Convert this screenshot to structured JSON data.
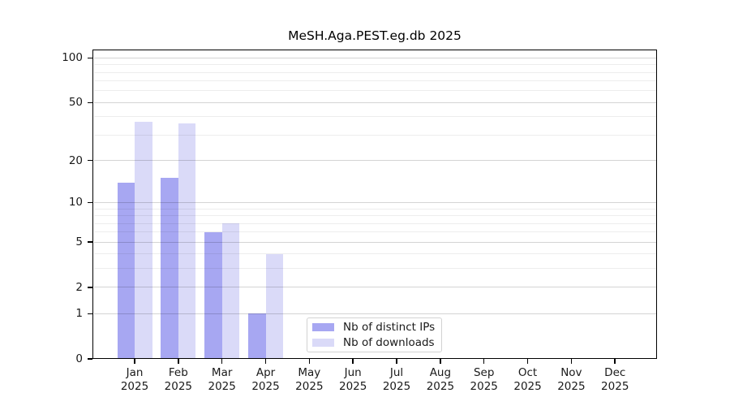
{
  "chart_data": {
    "type": "bar",
    "title": "MeSH.Aga.PEST.eg.db 2025",
    "categories": [
      "Jan",
      "Feb",
      "Mar",
      "Apr",
      "May",
      "Jun",
      "Jul",
      "Aug",
      "Sep",
      "Oct",
      "Nov",
      "Dec"
    ],
    "year_label": "2025",
    "series": [
      {
        "name": "Nb of distinct IPs",
        "color": "#a7a7f2",
        "values": [
          14,
          15,
          6,
          1,
          0,
          0,
          0,
          0,
          0,
          0,
          0,
          0
        ]
      },
      {
        "name": "Nb of downloads",
        "color": "#dadaf8",
        "values": [
          37,
          36,
          7,
          4,
          0,
          0,
          0,
          0,
          0,
          0,
          0,
          0
        ]
      }
    ],
    "y_scale": "log1p",
    "ylim": [
      0,
      116
    ],
    "y_ticks": [
      0,
      1,
      2,
      5,
      10,
      20,
      50,
      100
    ],
    "y_minor_ticks": [
      3,
      4,
      6,
      7,
      8,
      9,
      30,
      40,
      60,
      70,
      80,
      90
    ],
    "grid": true,
    "legend_position": "lower-center",
    "axis_color": "#000000",
    "text_color": "#1a1a1a"
  }
}
